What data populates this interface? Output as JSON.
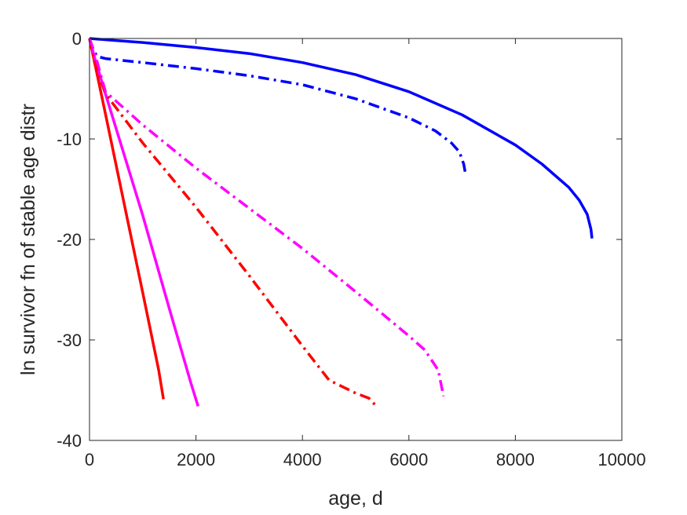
{
  "chart_data": {
    "type": "line",
    "title": "",
    "xlabel": "age, d",
    "ylabel": "ln survivor fn of stable age distr",
    "xlim": [
      0,
      10000
    ],
    "ylim": [
      -40,
      0
    ],
    "xticks": [
      0,
      2000,
      4000,
      6000,
      8000,
      10000
    ],
    "yticks": [
      0,
      -10,
      -20,
      -30,
      -40
    ],
    "xtick_labels": [
      "0",
      "2000",
      "4000",
      "6000",
      "8000",
      "10000"
    ],
    "ytick_labels": [
      "0",
      "-10",
      "-20",
      "-30",
      "-40"
    ],
    "grid": false,
    "legend": "none",
    "series": [
      {
        "color": "#0000ff",
        "style": "solid",
        "x": [
          0,
          500,
          1000,
          2000,
          3000,
          4000,
          5000,
          6000,
          7000,
          8000,
          8500,
          9000,
          9200,
          9350,
          9420,
          9440
        ],
        "y": [
          0,
          -0.2,
          -0.4,
          -0.9,
          -1.5,
          -2.4,
          -3.6,
          -5.3,
          -7.6,
          -10.6,
          -12.5,
          -14.8,
          -16.1,
          -17.5,
          -19.0,
          -19.9
        ]
      },
      {
        "color": "#0000ff",
        "style": "dashdot",
        "x": [
          0,
          50,
          150,
          300,
          1000,
          2000,
          3000,
          4000,
          5000,
          6000,
          6500,
          6800,
          6950,
          7030,
          7060
        ],
        "y": [
          0,
          -1.0,
          -1.8,
          -2.0,
          -2.4,
          -3.0,
          -3.7,
          -4.6,
          -6.0,
          -7.9,
          -9.2,
          -10.4,
          -11.3,
          -12.5,
          -13.4
        ]
      },
      {
        "color": "#ff0000",
        "style": "solid",
        "x": [
          0,
          100,
          300,
          700,
          1000,
          1300,
          1390
        ],
        "y": [
          0,
          -2.5,
          -7.5,
          -17.7,
          -25.3,
          -33.0,
          -35.9
        ]
      },
      {
        "color": "#ff00ff",
        "style": "solid",
        "x": [
          0,
          100,
          300,
          1000,
          1500,
          1900,
          2040
        ],
        "y": [
          0,
          -2.0,
          -5.5,
          -17.6,
          -26.9,
          -34.2,
          -36.6
        ]
      },
      {
        "color": "#ff0000",
        "style": "dashdot",
        "x": [
          0,
          100,
          300,
          1000,
          2000,
          3000,
          4000,
          4500,
          5000,
          5250,
          5390
        ],
        "y": [
          0,
          -2.5,
          -5.5,
          -10.4,
          -16.8,
          -23.6,
          -30.6,
          -34.0,
          -35.3,
          -35.8,
          -36.6
        ]
      },
      {
        "color": "#ff00ff",
        "style": "dashdot",
        "x": [
          0,
          100,
          300,
          1000,
          2000,
          3000,
          4000,
          5000,
          5500,
          6000,
          6300,
          6550,
          6650
        ],
        "y": [
          0,
          -1.5,
          -5.3,
          -8.6,
          -12.9,
          -16.9,
          -20.9,
          -25.2,
          -27.4,
          -29.6,
          -31.0,
          -33.0,
          -35.6
        ]
      }
    ]
  }
}
